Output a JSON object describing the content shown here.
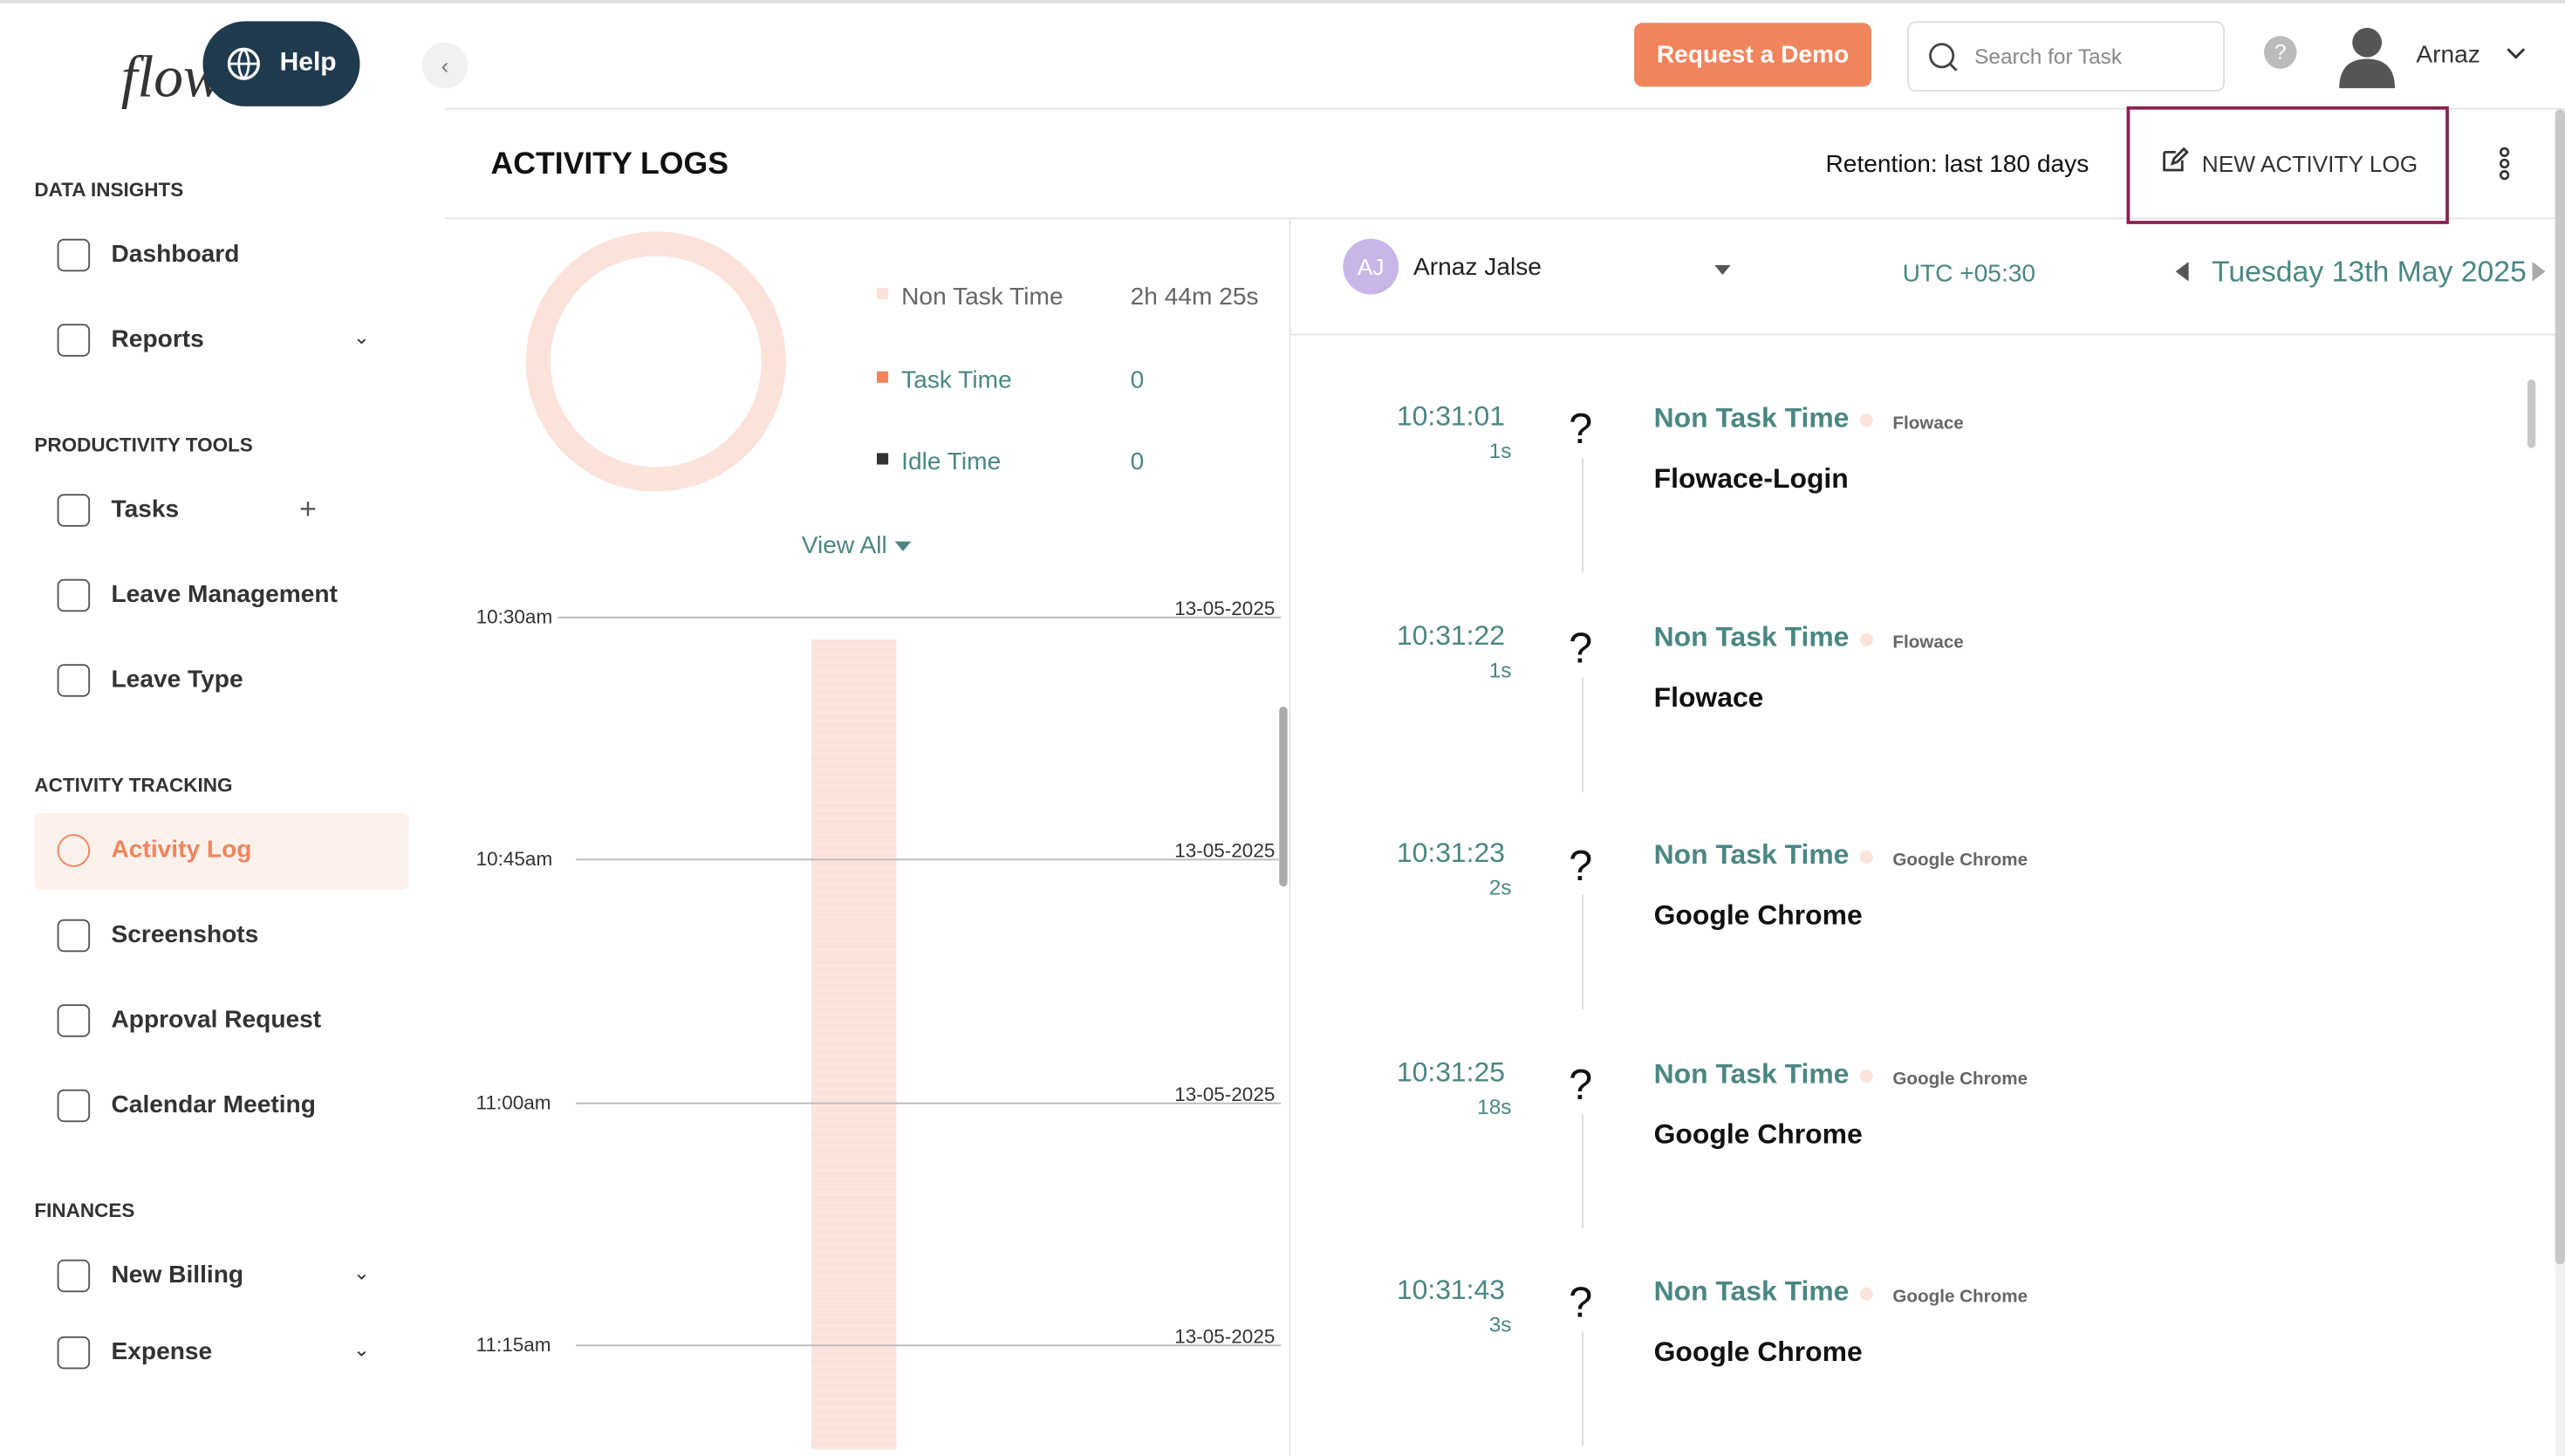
{
  "sidebar": {
    "logo": "flow",
    "help": "Help",
    "sections": [
      {
        "title": "DATA INSIGHTS",
        "items": [
          "Dashboard",
          "Reports"
        ]
      },
      {
        "title": "PRODUCTIVITY TOOLS",
        "items": [
          "Tasks",
          "Leave Management",
          "Leave Type"
        ]
      },
      {
        "title": "ACTIVITY TRACKING",
        "items": [
          "Activity Log",
          "Screenshots",
          "Approval Request",
          "Calendar Meeting"
        ]
      },
      {
        "title": "FINANCES",
        "items": [
          "New Billing",
          "Expense"
        ]
      }
    ]
  },
  "topbar": {
    "demo": "Request a Demo",
    "search": "Search for Task",
    "user": "Arnaz"
  },
  "header": {
    "title": "ACTIVITY LOGS",
    "retention": "Retention: last 180 days",
    "new_log": "NEW ACTIVITY LOG"
  },
  "summary": {
    "legend": [
      {
        "label": "Non Task Time",
        "value": "2h 44m 25s"
      },
      {
        "label": "Task Time",
        "value": "0"
      },
      {
        "label": "Idle Time",
        "value": "0"
      }
    ],
    "view_all": "View All"
  },
  "timeline": {
    "times": [
      "10:30am",
      "10:45am",
      "11:00am",
      "11:15am"
    ],
    "dates": [
      "13-05-2025",
      "13-05-2025",
      "13-05-2025",
      "13-05-2025"
    ]
  },
  "log": {
    "avatar": "AJ",
    "user": "Arnaz Jalse",
    "timezone": "UTC +05:30",
    "date": "Tuesday 13th May 2025",
    "entries": [
      {
        "time": "10:31:01",
        "duration": "1s",
        "icon": "?",
        "category": "Non Task Time",
        "app": "Flowace",
        "title": "Flowace-Login"
      },
      {
        "time": "10:31:22",
        "duration": "1s",
        "icon": "?",
        "category": "Non Task Time",
        "app": "Flowace",
        "title": "Flowace"
      },
      {
        "time": "10:31:23",
        "duration": "2s",
        "icon": "?",
        "category": "Non Task Time",
        "app": "Google Chrome",
        "title": "Google Chrome"
      },
      {
        "time": "10:31:25",
        "duration": "18s",
        "icon": "?",
        "category": "Non Task Time",
        "app": "Google Chrome",
        "title": "Google Chrome"
      },
      {
        "time": "10:31:43",
        "duration": "3s",
        "icon": "?",
        "category": "Non Task Time",
        "app": "Google Chrome",
        "title": "Google Chrome"
      }
    ]
  }
}
